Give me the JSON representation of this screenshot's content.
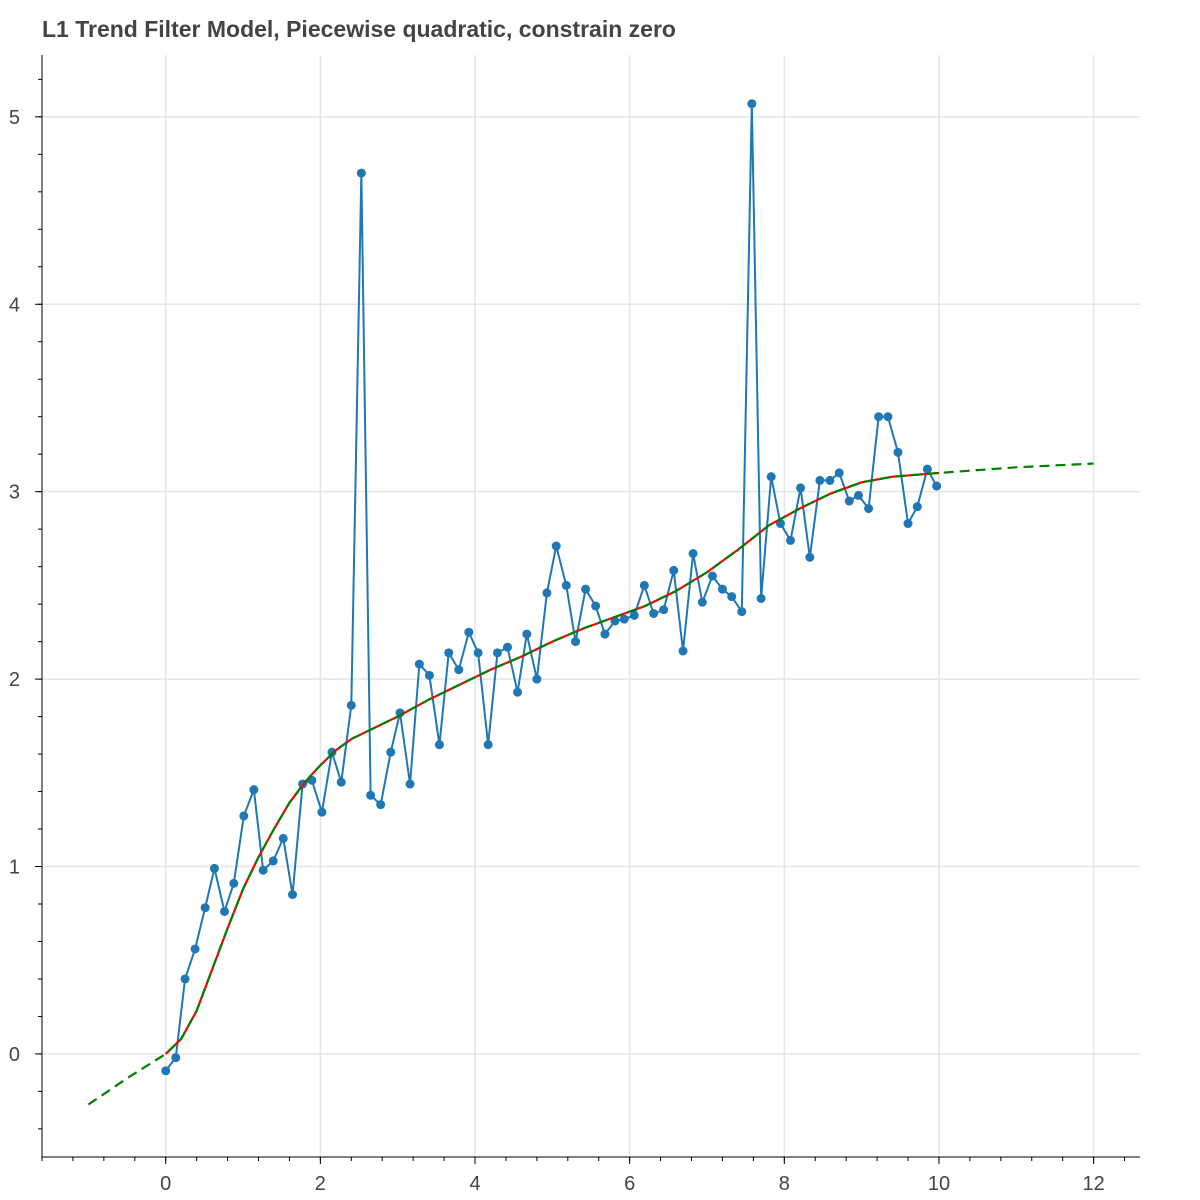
{
  "chart_data": {
    "type": "line",
    "title": "L1 Trend Filter Model, Piecewise quadratic, constrain zero",
    "xlabel": "",
    "ylabel": "",
    "xlim": [
      -1.6,
      12.6
    ],
    "ylim": [
      -0.55,
      5.33
    ],
    "xticks": [
      0,
      2,
      4,
      6,
      8,
      10,
      12
    ],
    "yticks": [
      0,
      1,
      2,
      3,
      4,
      5
    ],
    "grid": true,
    "colors": {
      "observed": "#1f77b4",
      "fit": "#ff0000",
      "extrapolation": "#008000"
    },
    "series": [
      {
        "style": "line-with-markers",
        "color": "#1f77b4",
        "x": [
          0.0,
          0.13,
          0.25,
          0.38,
          0.51,
          0.63,
          0.76,
          0.88,
          1.01,
          1.14,
          1.26,
          1.39,
          1.52,
          1.64,
          1.77,
          1.89,
          2.02,
          2.15,
          2.27,
          2.4,
          2.53,
          2.65,
          2.78,
          2.91,
          3.03,
          3.16,
          3.28,
          3.41,
          3.54,
          3.66,
          3.79,
          3.92,
          4.04,
          4.17,
          4.29,
          4.42,
          4.55,
          4.67,
          4.8,
          4.93,
          5.05,
          5.18,
          5.3,
          5.43,
          5.56,
          5.68,
          5.81,
          5.93,
          6.06,
          6.19,
          6.31,
          6.44,
          6.57,
          6.69,
          6.82,
          6.94,
          7.07,
          7.2,
          7.32,
          7.45,
          7.58,
          7.7,
          7.83,
          7.95,
          8.08,
          8.21,
          8.33,
          8.46,
          8.59,
          8.71,
          8.84,
          8.96,
          9.09,
          9.22,
          9.34,
          9.47,
          9.6,
          9.72,
          9.85,
          9.97
        ],
        "values": [
          -0.09,
          -0.02,
          0.4,
          0.56,
          0.78,
          0.99,
          0.76,
          0.91,
          1.27,
          1.41,
          0.98,
          1.03,
          1.15,
          0.85,
          1.44,
          1.46,
          1.29,
          1.61,
          1.45,
          1.86,
          4.7,
          1.38,
          1.33,
          1.61,
          1.82,
          1.44,
          2.08,
          2.02,
          1.65,
          2.14,
          2.05,
          2.25,
          2.14,
          1.65,
          2.14,
          2.17,
          1.93,
          2.24,
          2.0,
          2.46,
          2.71,
          2.5,
          2.2,
          2.48,
          2.39,
          2.24,
          2.31,
          2.32,
          2.34,
          2.5,
          2.35,
          2.37,
          2.58,
          2.15,
          2.67,
          2.41,
          2.55,
          2.48,
          2.44,
          2.36,
          5.07,
          2.43,
          3.08,
          2.83,
          2.74,
          3.02,
          2.65,
          3.06,
          3.06,
          3.1,
          2.95,
          2.98,
          2.91,
          3.4,
          3.4,
          3.21,
          2.83,
          2.92,
          3.12,
          3.03
        ]
      },
      {
        "style": "line",
        "color": "#ff0000",
        "x": [
          0,
          0.2,
          0.4,
          0.6,
          0.8,
          1.0,
          1.2,
          1.4,
          1.6,
          1.8,
          2.0,
          2.2,
          2.4,
          2.6,
          2.8,
          3.0,
          3.4,
          3.8,
          4.2,
          4.6,
          5.0,
          5.4,
          5.8,
          6.2,
          6.6,
          7.0,
          7.4,
          7.8,
          8.2,
          8.6,
          9.0,
          9.4,
          9.7,
          10.0
        ],
        "values": [
          0.0,
          0.08,
          0.23,
          0.45,
          0.67,
          0.88,
          1.05,
          1.2,
          1.34,
          1.45,
          1.54,
          1.62,
          1.68,
          1.72,
          1.76,
          1.8,
          1.89,
          1.97,
          2.05,
          2.12,
          2.2,
          2.27,
          2.33,
          2.39,
          2.47,
          2.57,
          2.69,
          2.82,
          2.91,
          2.99,
          3.05,
          3.08,
          3.09,
          3.1
        ]
      },
      {
        "style": "dashed",
        "color": "#008000",
        "x": [
          -1.0,
          -0.5,
          0,
          0.2,
          0.4,
          0.6,
          0.8,
          1.0,
          1.2,
          1.4,
          1.6,
          1.8,
          2.0,
          2.2,
          2.4,
          2.6,
          2.8,
          3.0,
          3.4,
          3.8,
          4.2,
          4.6,
          5.0,
          5.4,
          5.8,
          6.2,
          6.6,
          7.0,
          7.4,
          7.8,
          8.2,
          8.6,
          9.0,
          9.4,
          9.7,
          10.0,
          11.0,
          12.0
        ],
        "values": [
          -0.27,
          -0.13,
          0.0,
          0.08,
          0.23,
          0.45,
          0.67,
          0.88,
          1.05,
          1.2,
          1.34,
          1.45,
          1.54,
          1.62,
          1.68,
          1.72,
          1.76,
          1.8,
          1.89,
          1.97,
          2.05,
          2.12,
          2.2,
          2.27,
          2.33,
          2.39,
          2.47,
          2.57,
          2.69,
          2.82,
          2.91,
          2.99,
          3.05,
          3.08,
          3.09,
          3.1,
          3.13,
          3.15
        ]
      }
    ]
  }
}
